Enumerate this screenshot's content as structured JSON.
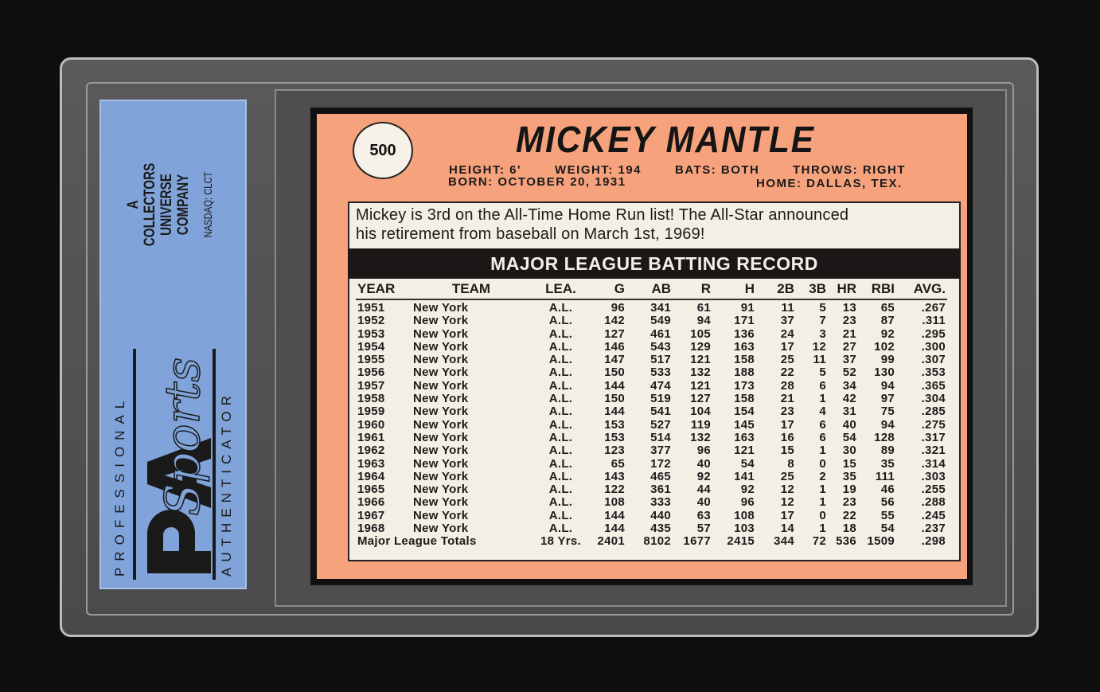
{
  "label": {
    "top_text": "PROFESSIONAL",
    "bottom_text": "AUTHENTICATOR",
    "logo_text": "PSA Sports",
    "company_lines": [
      "A",
      "COLLECTORS",
      "UNIVERSE",
      "COMPANY"
    ],
    "ticker": "NASDAQ: CLCT",
    "color": "#80a4da"
  },
  "card": {
    "number": "500",
    "name": "MICKEY MANTLE",
    "height": "HEIGHT: 6'",
    "weight": "WEIGHT: 194",
    "bats": "BATS: BOTH",
    "throws": "THROWS: RIGHT",
    "born": "BORN: OCTOBER 20, 1931",
    "home": "HOME: DALLAS, TEX.",
    "blurb_line1": "Mickey is 3rd on the All-Time Home Run list! The All-Star announced",
    "blurb_line2": "his retirement from baseball on March 1st, 1969!",
    "record_title": "MAJOR LEAGUE BATTING RECORD",
    "background_color": "#f6a27c"
  },
  "table": {
    "headers": [
      "YEAR",
      "TEAM",
      "LEA.",
      "G",
      "AB",
      "R",
      "H",
      "2B",
      "3B",
      "HR",
      "RBI",
      "AVG."
    ],
    "rows": [
      [
        "1951",
        "New York",
        "A.L.",
        "96",
        "341",
        "61",
        "91",
        "11",
        "5",
        "13",
        "65",
        ".267"
      ],
      [
        "1952",
        "New York",
        "A.L.",
        "142",
        "549",
        "94",
        "171",
        "37",
        "7",
        "23",
        "87",
        ".311"
      ],
      [
        "1953",
        "New York",
        "A.L.",
        "127",
        "461",
        "105",
        "136",
        "24",
        "3",
        "21",
        "92",
        ".295"
      ],
      [
        "1954",
        "New York",
        "A.L.",
        "146",
        "543",
        "129",
        "163",
        "17",
        "12",
        "27",
        "102",
        ".300"
      ],
      [
        "1955",
        "New York",
        "A.L.",
        "147",
        "517",
        "121",
        "158",
        "25",
        "11",
        "37",
        "99",
        ".307"
      ],
      [
        "1956",
        "New York",
        "A.L.",
        "150",
        "533",
        "132",
        "188",
        "22",
        "5",
        "52",
        "130",
        ".353"
      ],
      [
        "1957",
        "New York",
        "A.L.",
        "144",
        "474",
        "121",
        "173",
        "28",
        "6",
        "34",
        "94",
        ".365"
      ],
      [
        "1958",
        "New York",
        "A.L.",
        "150",
        "519",
        "127",
        "158",
        "21",
        "1",
        "42",
        "97",
        ".304"
      ],
      [
        "1959",
        "New York",
        "A.L.",
        "144",
        "541",
        "104",
        "154",
        "23",
        "4",
        "31",
        "75",
        ".285"
      ],
      [
        "1960",
        "New York",
        "A.L.",
        "153",
        "527",
        "119",
        "145",
        "17",
        "6",
        "40",
        "94",
        ".275"
      ],
      [
        "1961",
        "New York",
        "A.L.",
        "153",
        "514",
        "132",
        "163",
        "16",
        "6",
        "54",
        "128",
        ".317"
      ],
      [
        "1962",
        "New York",
        "A.L.",
        "123",
        "377",
        "96",
        "121",
        "15",
        "1",
        "30",
        "89",
        ".321"
      ],
      [
        "1963",
        "New York",
        "A.L.",
        "65",
        "172",
        "40",
        "54",
        "8",
        "0",
        "15",
        "35",
        ".314"
      ],
      [
        "1964",
        "New York",
        "A.L.",
        "143",
        "465",
        "92",
        "141",
        "25",
        "2",
        "35",
        "111",
        ".303"
      ],
      [
        "1965",
        "New York",
        "A.L.",
        "122",
        "361",
        "44",
        "92",
        "12",
        "1",
        "19",
        "46",
        ".255"
      ],
      [
        "1966",
        "New York",
        "A.L.",
        "108",
        "333",
        "40",
        "96",
        "12",
        "1",
        "23",
        "56",
        ".288"
      ],
      [
        "1967",
        "New York",
        "A.L.",
        "144",
        "440",
        "63",
        "108",
        "17",
        "0",
        "22",
        "55",
        ".245"
      ],
      [
        "1968",
        "New York",
        "A.L.",
        "144",
        "435",
        "57",
        "103",
        "14",
        "1",
        "18",
        "54",
        ".237"
      ]
    ],
    "totals": [
      "Major League Totals",
      "18 Yrs.",
      "2401",
      "8102",
      "1677",
      "2415",
      "344",
      "72",
      "536",
      "1509",
      ".298"
    ]
  }
}
